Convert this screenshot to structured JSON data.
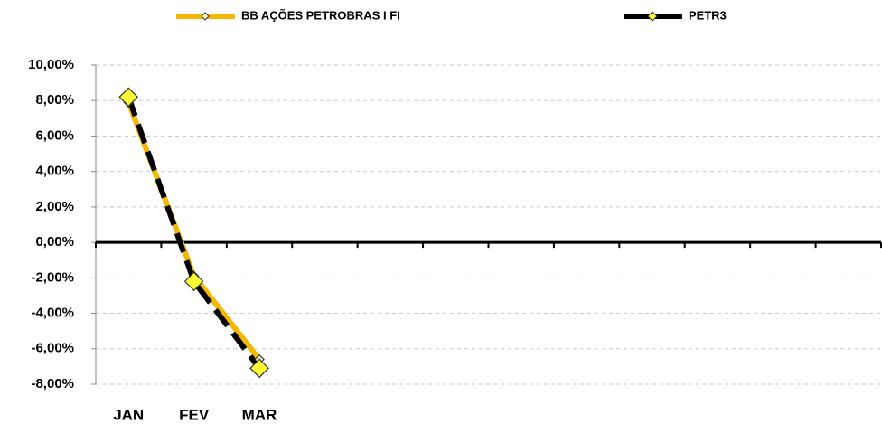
{
  "chart_data": {
    "type": "line",
    "categories": [
      "JAN",
      "FEV",
      "MAR",
      null,
      null,
      null,
      null,
      null,
      null,
      null,
      null,
      null
    ],
    "series": [
      {
        "name": "BB AÇÕES PETROBRAS I FI",
        "color": "#f5b800",
        "values": [
          7.9,
          -1.9,
          -6.6,
          null,
          null,
          null,
          null,
          null,
          null,
          null,
          null,
          null
        ]
      },
      {
        "name": "PETR3",
        "color": "#000000",
        "values": [
          8.2,
          -2.2,
          -7.1,
          null,
          null,
          null,
          null,
          null,
          null,
          null,
          null,
          null
        ]
      }
    ],
    "ylim": [
      -8,
      10
    ],
    "yticks": [
      {
        "value": -8,
        "label": "-8,00%"
      },
      {
        "value": -6,
        "label": "-6,00%"
      },
      {
        "value": -4,
        "label": "-4,00%"
      },
      {
        "value": -2,
        "label": "-2,00%"
      },
      {
        "value": 0,
        "label": "0,00%"
      },
      {
        "value": 2,
        "label": "2,00%"
      },
      {
        "value": 4,
        "label": "4,00%"
      },
      {
        "value": 6,
        "label": "6,00%"
      },
      {
        "value": 8,
        "label": "8,00%"
      },
      {
        "value": 10,
        "label": "10,00%"
      }
    ],
    "grid": true,
    "legend": "top"
  }
}
